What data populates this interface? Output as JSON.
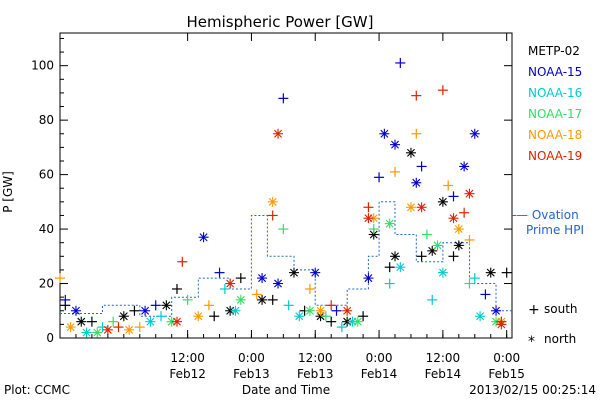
{
  "chart_data": {
    "type": "scatter",
    "title": "Hemispheric Power [GW]",
    "ylabel": "P [GW]",
    "xlabel": "Date and Time",
    "ylim": [
      0,
      112
    ],
    "yticks": [
      0,
      20,
      40,
      60,
      80,
      100
    ],
    "xlim": [
      "2013-02-11T12:00",
      "2013-02-15T01:00"
    ],
    "xticks": [
      {
        "t": "2013-02-12T12:00",
        "time": "12:00",
        "date": "Feb12"
      },
      {
        "t": "2013-02-13T00:00",
        "time": "0:00",
        "date": "Feb13"
      },
      {
        "t": "2013-02-13T12:00",
        "time": "12:00",
        "date": "Feb13"
      },
      {
        "t": "2013-02-14T00:00",
        "time": "0:00",
        "date": "Feb14"
      },
      {
        "t": "2013-02-14T12:00",
        "time": "12:00",
        "date": "Feb14"
      },
      {
        "t": "2013-02-15T00:00",
        "time": "0:00",
        "date": "Feb15"
      }
    ],
    "legend_placement": "right",
    "series": [
      {
        "name": "METP-02",
        "color": "#000000",
        "south": [
          [
            "2013-02-11T13:00",
            12
          ],
          [
            "2013-02-11T18:00",
            6
          ],
          [
            "2013-02-12T02:00",
            10
          ],
          [
            "2013-02-12T10:00",
            18
          ],
          [
            "2013-02-12T17:00",
            8
          ],
          [
            "2013-02-12T22:00",
            22
          ],
          [
            "2013-02-13T04:00",
            14
          ],
          [
            "2013-02-13T10:00",
            10
          ],
          [
            "2013-02-13T15:00",
            6
          ],
          [
            "2013-02-13T21:00",
            8
          ],
          [
            "2013-02-14T02:00",
            26
          ],
          [
            "2013-02-14T08:00",
            30
          ],
          [
            "2013-02-14T14:00",
            30
          ],
          [
            "2013-02-15T00:00",
            24
          ]
        ],
        "north": [
          [
            "2013-02-11T16:00",
            6
          ],
          [
            "2013-02-12T00:00",
            8
          ],
          [
            "2013-02-12T08:00",
            12
          ],
          [
            "2013-02-12T20:00",
            10
          ],
          [
            "2013-02-13T02:00",
            14
          ],
          [
            "2013-02-13T08:00",
            24
          ],
          [
            "2013-02-13T13:00",
            8
          ],
          [
            "2013-02-13T18:00",
            6
          ],
          [
            "2013-02-13T23:00",
            38
          ],
          [
            "2013-02-14T03:00",
            30
          ],
          [
            "2013-02-14T06:00",
            68
          ],
          [
            "2013-02-14T10:00",
            32
          ],
          [
            "2013-02-14T12:00",
            50
          ],
          [
            "2013-02-14T15:00",
            34
          ],
          [
            "2013-02-14T21:00",
            24
          ]
        ]
      },
      {
        "name": "NOAA-15",
        "color": "#0000cc",
        "south": [
          [
            "2013-02-11T13:00",
            14
          ],
          [
            "2013-02-12T06:00",
            12
          ],
          [
            "2013-02-12T18:00",
            24
          ],
          [
            "2013-02-13T06:00",
            88
          ],
          [
            "2013-02-13T16:00",
            10
          ],
          [
            "2013-02-14T00:00",
            59
          ],
          [
            "2013-02-14T04:00",
            101
          ],
          [
            "2013-02-14T08:00",
            63
          ],
          [
            "2013-02-14T14:00",
            52
          ],
          [
            "2013-02-14T20:00",
            16
          ]
        ],
        "north": [
          [
            "2013-02-11T15:00",
            10
          ],
          [
            "2013-02-12T04:00",
            10
          ],
          [
            "2013-02-12T15:00",
            37
          ],
          [
            "2013-02-13T02:00",
            22
          ],
          [
            "2013-02-13T05:00",
            20
          ],
          [
            "2013-02-13T12:00",
            24
          ],
          [
            "2013-02-13T22:00",
            22
          ],
          [
            "2013-02-14T01:00",
            75
          ],
          [
            "2013-02-14T03:00",
            71
          ],
          [
            "2013-02-14T07:00",
            57
          ],
          [
            "2013-02-14T16:00",
            63
          ],
          [
            "2013-02-14T18:00",
            75
          ],
          [
            "2013-02-14T22:00",
            10
          ]
        ]
      },
      {
        "name": "NOAA-16",
        "color": "#00cccc",
        "south": [
          [
            "2013-02-11T20:00",
            4
          ],
          [
            "2013-02-12T07:00",
            8
          ],
          [
            "2013-02-12T19:00",
            18
          ],
          [
            "2013-02-13T07:00",
            12
          ],
          [
            "2013-02-13T17:00",
            4
          ],
          [
            "2013-02-14T02:00",
            20
          ],
          [
            "2013-02-14T10:00",
            14
          ],
          [
            "2013-02-14T18:00",
            22
          ]
        ],
        "north": [
          [
            "2013-02-11T17:00",
            2
          ],
          [
            "2013-02-12T05:00",
            6
          ],
          [
            "2013-02-12T21:00",
            10
          ],
          [
            "2013-02-13T09:00",
            8
          ],
          [
            "2013-02-13T19:00",
            6
          ],
          [
            "2013-02-14T04:00",
            26
          ],
          [
            "2013-02-14T12:00",
            24
          ],
          [
            "2013-02-14T19:00",
            8
          ]
        ]
      },
      {
        "name": "NOAA-17",
        "color": "#33dd66",
        "south": [
          [
            "2013-02-11T22:00",
            6
          ],
          [
            "2013-02-12T12:00",
            14
          ],
          [
            "2013-02-13T06:00",
            40
          ],
          [
            "2013-02-13T14:00",
            8
          ],
          [
            "2013-02-13T23:00",
            40
          ],
          [
            "2013-02-14T09:00",
            38
          ],
          [
            "2013-02-14T17:00",
            20
          ]
        ],
        "north": [
          [
            "2013-02-11T19:00",
            2
          ],
          [
            "2013-02-12T09:00",
            6
          ],
          [
            "2013-02-12T22:00",
            14
          ],
          [
            "2013-02-13T11:00",
            10
          ],
          [
            "2013-02-13T20:00",
            6
          ],
          [
            "2013-02-14T02:00",
            42
          ],
          [
            "2013-02-14T11:00",
            34
          ],
          [
            "2013-02-14T22:00",
            6
          ]
        ]
      },
      {
        "name": "NOAA-18",
        "color": "#ff9900",
        "south": [
          [
            "2013-02-11T12:00",
            22
          ],
          [
            "2013-02-12T03:00",
            4
          ],
          [
            "2013-02-12T16:00",
            12
          ],
          [
            "2013-02-13T01:00",
            16
          ],
          [
            "2013-02-13T11:00",
            18
          ],
          [
            "2013-02-14T03:00",
            61
          ],
          [
            "2013-02-14T07:00",
            75
          ],
          [
            "2013-02-14T13:00",
            56
          ],
          [
            "2013-02-14T17:00",
            36
          ]
        ],
        "north": [
          [
            "2013-02-11T14:00",
            4
          ],
          [
            "2013-02-12T01:00",
            3
          ],
          [
            "2013-02-12T14:00",
            8
          ],
          [
            "2013-02-13T04:00",
            50
          ],
          [
            "2013-02-13T13:00",
            10
          ],
          [
            "2013-02-13T23:00",
            44
          ],
          [
            "2013-02-14T06:00",
            48
          ],
          [
            "2013-02-14T15:00",
            40
          ],
          [
            "2013-02-14T23:00",
            6
          ]
        ]
      },
      {
        "name": "NOAA-19",
        "color": "#dd2200",
        "south": [
          [
            "2013-02-11T23:00",
            4
          ],
          [
            "2013-02-12T11:00",
            28
          ],
          [
            "2013-02-13T04:00",
            45
          ],
          [
            "2013-02-13T15:00",
            12
          ],
          [
            "2013-02-13T22:00",
            48
          ],
          [
            "2013-02-14T07:00",
            89
          ],
          [
            "2013-02-14T12:00",
            91
          ],
          [
            "2013-02-14T16:00",
            46
          ],
          [
            "2013-02-14T23:00",
            6
          ]
        ],
        "north": [
          [
            "2013-02-11T21:00",
            3
          ],
          [
            "2013-02-12T10:00",
            6
          ],
          [
            "2013-02-12T20:00",
            20
          ],
          [
            "2013-02-13T05:00",
            75
          ],
          [
            "2013-02-13T18:00",
            10
          ],
          [
            "2013-02-13T22:00",
            44
          ],
          [
            "2013-02-14T08:00",
            48
          ],
          [
            "2013-02-14T14:00",
            44
          ],
          [
            "2013-02-14T17:00",
            53
          ],
          [
            "2013-02-14T23:00",
            5
          ]
        ]
      }
    ],
    "ovation": {
      "label_lines": [
        "— Ovation",
        "Prime HPI"
      ],
      "color": "#2266cc",
      "steps": [
        [
          "2013-02-11T12:00",
          9
        ],
        [
          "2013-02-11T20:00",
          12
        ],
        [
          "2013-02-12T03:00",
          8
        ],
        [
          "2013-02-12T09:00",
          15
        ],
        [
          "2013-02-12T14:00",
          22
        ],
        [
          "2013-02-12T20:00",
          18
        ],
        [
          "2013-02-13T00:00",
          45
        ],
        [
          "2013-02-13T03:00",
          30
        ],
        [
          "2013-02-13T08:00",
          25
        ],
        [
          "2013-02-13T12:00",
          12
        ],
        [
          "2013-02-13T18:00",
          18
        ],
        [
          "2013-02-13T22:00",
          30
        ],
        [
          "2013-02-14T00:00",
          50
        ],
        [
          "2013-02-14T03:00",
          38
        ],
        [
          "2013-02-14T07:00",
          28
        ],
        [
          "2013-02-14T12:00",
          35
        ],
        [
          "2013-02-14T17:00",
          20
        ],
        [
          "2013-02-14T22:00",
          10
        ],
        [
          "2013-02-15T01:00",
          10
        ]
      ]
    },
    "markers_legend": {
      "south": "south",
      "north": "north"
    }
  },
  "footer": {
    "left": "Plot: CCMC",
    "right": "2013/02/15 00:25:14"
  }
}
